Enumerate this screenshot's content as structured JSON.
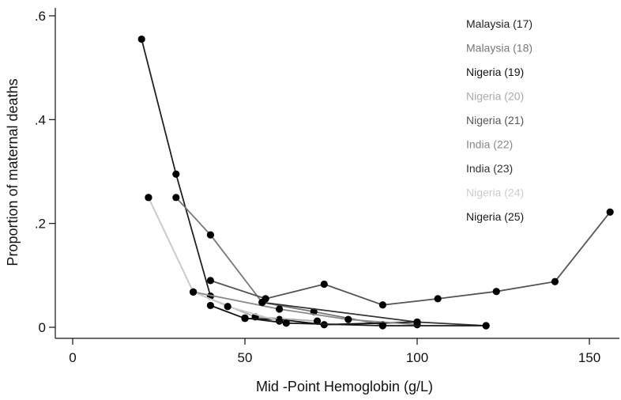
{
  "chart_data": {
    "type": "line",
    "xlabel": "Mid -Point Hemoglobin (g/L)",
    "ylabel": "Proportion of maternal deaths",
    "xlim": [
      0,
      160
    ],
    "ylim": [
      0,
      0.6
    ],
    "xticks": [
      0,
      50,
      100,
      150
    ],
    "xtick_labels": [
      "0",
      "50",
      "100",
      "150"
    ],
    "yticks": [
      0,
      0.2,
      0.4,
      0.6
    ],
    "ytick_labels": [
      "0",
      ".2",
      ".4",
      ".6"
    ],
    "grid": false,
    "legend_position": "top-right",
    "series": [
      {
        "name": "Malaysia (17)",
        "color": "#222222",
        "x": [
          20,
          30,
          40
        ],
        "y": [
          0.555,
          0.295,
          0.06
        ]
      },
      {
        "name": "Malaysia (18)",
        "color": "#777777",
        "x": [
          30,
          40,
          55,
          70,
          90
        ],
        "y": [
          0.25,
          0.178,
          0.048,
          0.03,
          0.005
        ]
      },
      {
        "name": "Nigeria (19)",
        "color": "#111111",
        "x": [
          40,
          50,
          60,
          73,
          100
        ],
        "y": [
          0.042,
          0.017,
          0.015,
          0.005,
          0.01
        ]
      },
      {
        "name": "Nigeria (20)",
        "color": "#aaaaaa",
        "x": [
          22,
          35,
          53,
          71
        ],
        "y": [
          0.25,
          0.068,
          0.02,
          0.012
        ]
      },
      {
        "name": "Nigeria (21)",
        "color": "#555555",
        "x": [
          40,
          56,
          73,
          90,
          106,
          123,
          140,
          156
        ],
        "y": [
          0.09,
          0.055,
          0.083,
          0.043,
          0.055,
          0.069,
          0.088,
          0.222
        ]
      },
      {
        "name": "India (22)",
        "color": "#888888",
        "x": [
          35,
          60,
          80,
          100
        ],
        "y": [
          0.068,
          0.035,
          0.015,
          0.005
        ]
      },
      {
        "name": "India (23)",
        "color": "#333333",
        "x": [
          55,
          100,
          120
        ],
        "y": [
          0.048,
          0.01,
          0.003
        ]
      },
      {
        "name": "Nigeria (24)",
        "color": "#cccccc",
        "x": [
          22,
          35,
          45,
          60
        ],
        "y": [
          0.25,
          0.068,
          0.04,
          0.012
        ]
      },
      {
        "name": "Nigeria (25)",
        "color": "#1a1a1a",
        "x": [
          50,
          62,
          90,
          120
        ],
        "y": [
          0.018,
          0.008,
          0.003,
          0.003
        ]
      }
    ]
  }
}
